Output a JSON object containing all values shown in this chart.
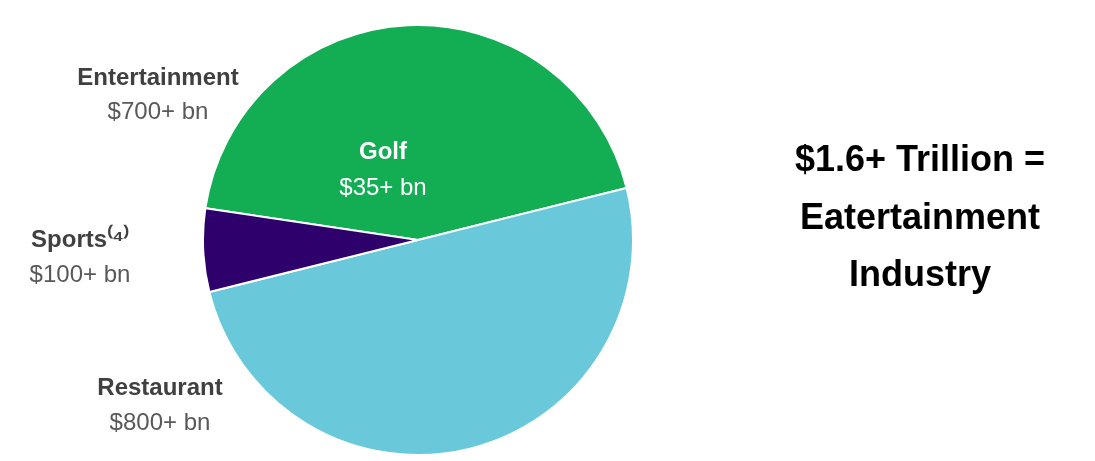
{
  "chart_data": {
    "type": "pie",
    "categories": [
      "Entertainment",
      "Restaurant",
      "Sports⁽⁴⁾"
    ],
    "values": [
      700,
      800,
      100
    ],
    "colors": [
      "#13ad54",
      "#69c9db",
      "#2e006b"
    ],
    "value_labels": [
      "$700+ bn",
      "$800+ bn",
      "$100+ bn"
    ],
    "annotations": [
      "Golf",
      "$35+ bn",
      "$1.6+ Trillion =",
      "Eatertainment",
      "Industry"
    ]
  }
}
